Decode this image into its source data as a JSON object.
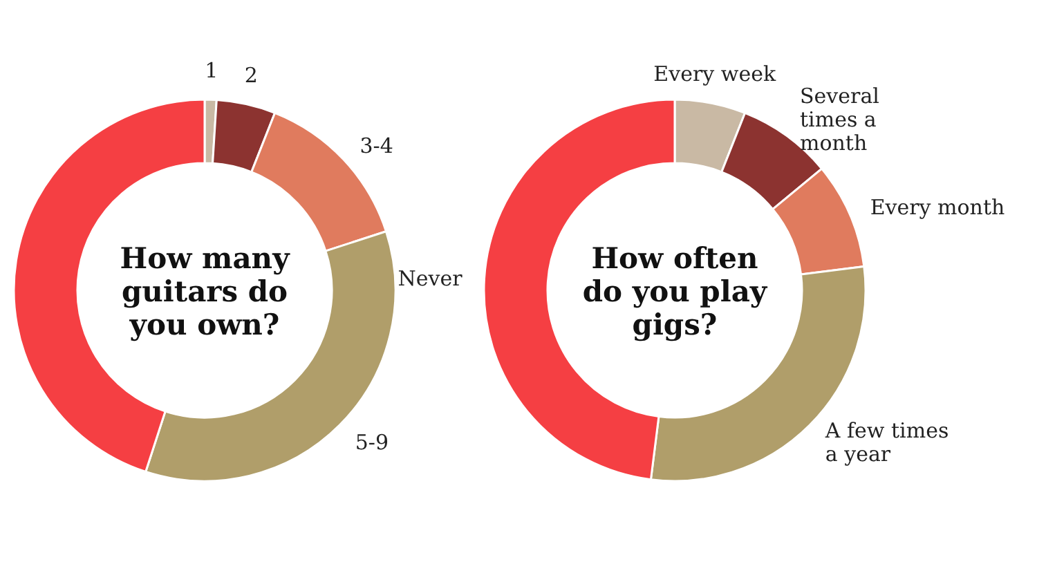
{
  "chart_data": [
    {
      "type": "donut",
      "title": "How many guitars do you own?",
      "categories": [
        "1",
        "2",
        "3-4",
        "5-9",
        null
      ],
      "values": [
        1,
        5,
        14,
        35,
        45
      ],
      "colors": [
        "#c9b9a4",
        "#8c3330",
        "#e07b5e",
        "#b09e6a",
        "#f53f43"
      ]
    },
    {
      "type": "donut",
      "title": "How often do you play gigs?",
      "categories": [
        "Every week",
        "Several times a month",
        "Every month",
        "A few times a year",
        "Never"
      ],
      "values": [
        6,
        8,
        9,
        29,
        48
      ],
      "colors": [
        "#c9b9a4",
        "#8c3330",
        "#e07b5e",
        "#b09e6a",
        "#f53f43"
      ]
    }
  ]
}
